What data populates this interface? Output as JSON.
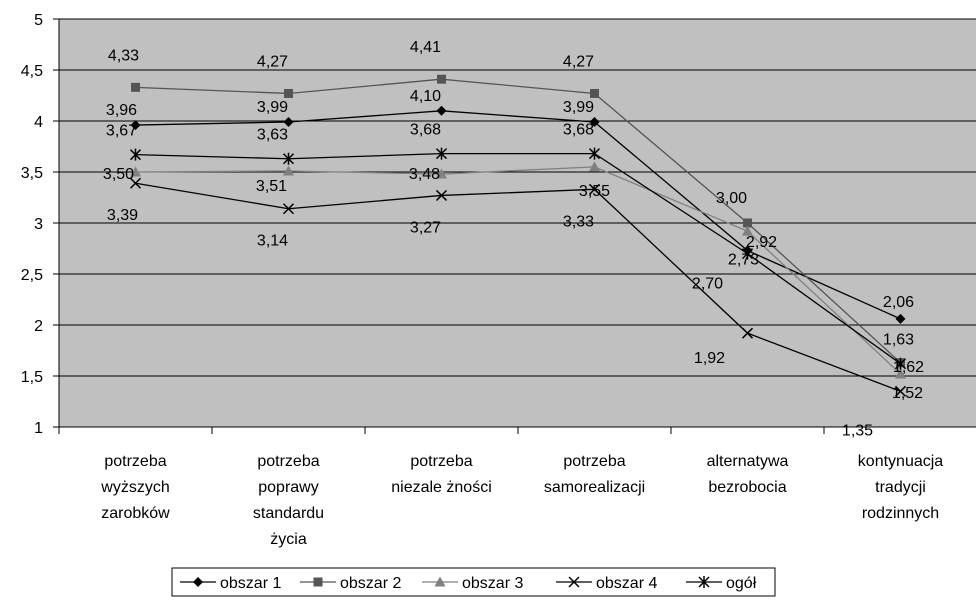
{
  "chart_data": {
    "type": "line",
    "categories": [
      [
        "potrzeba",
        "wyższych",
        "zarobków"
      ],
      [
        "potrzeba",
        "poprawy",
        "standardu",
        "życia"
      ],
      [
        "potrzeba",
        "niezale żności"
      ],
      [
        "potrzeba",
        "samorealizacji"
      ],
      [
        "alternatywa",
        "bezrobocia"
      ],
      [
        "kontynuacja",
        "tradycji",
        "rodzinnych"
      ]
    ],
    "ylim": [
      1,
      5
    ],
    "yticks": [
      "1",
      "1,5",
      "2",
      "2,5",
      "3",
      "3,5",
      "4",
      "4,5",
      "5"
    ],
    "grid": true,
    "plot_background": "#c0c0c0",
    "legend_position": "bottom",
    "series": [
      {
        "name": "obszar 1",
        "marker": "diamond",
        "color": "#000000",
        "values": [
          3.96,
          3.99,
          4.1,
          3.99,
          2.73,
          2.06
        ],
        "labels": [
          "3,96",
          "3,99",
          "4,10",
          "3,99",
          "2,73",
          "2,06"
        ]
      },
      {
        "name": "obszar 2",
        "marker": "square",
        "color": "#555555",
        "values": [
          4.33,
          4.27,
          4.41,
          4.27,
          3.0,
          1.63
        ],
        "labels": [
          "4,33",
          "4,27",
          "4,41",
          "4,27",
          "3,00",
          "1,63"
        ]
      },
      {
        "name": "obszar 3",
        "marker": "triangle",
        "color": "#808080",
        "values": [
          3.5,
          3.51,
          3.48,
          3.55,
          2.92,
          1.52
        ],
        "labels": [
          "3,50",
          "3,51",
          "3,48",
          "3,55",
          "2,92",
          "1,52"
        ]
      },
      {
        "name": "obszar 4",
        "marker": "x",
        "color": "#000000",
        "values": [
          3.39,
          3.14,
          3.27,
          3.33,
          1.92,
          1.35
        ],
        "labels": [
          "3,39",
          "3,14",
          "3,27",
          "3,33",
          "1,92",
          "1,35"
        ]
      },
      {
        "name": "ogół",
        "marker": "star",
        "color": "#000000",
        "values": [
          3.67,
          3.63,
          3.68,
          3.68,
          2.7,
          1.62
        ],
        "labels": [
          "3,67",
          "3,63",
          "3,68",
          "3,68",
          "2,70",
          "1,62"
        ]
      }
    ]
  }
}
